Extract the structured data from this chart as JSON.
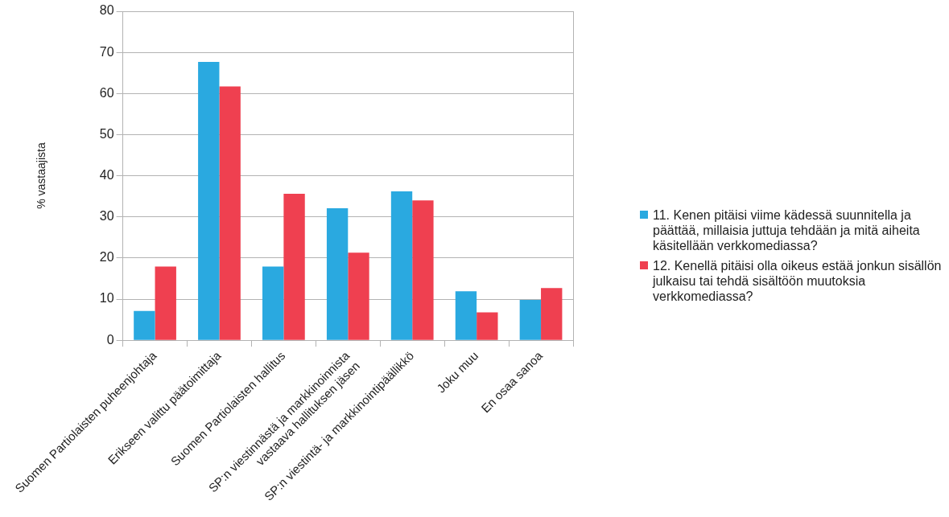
{
  "chart_data": {
    "type": "bar",
    "ylabel": "% vastaajista",
    "categories": [
      "Suomen Partiolaisten puheenjohtaja",
      "Erikseen valittu päätoimittaja",
      "Suomen Partiolaisten hallitus",
      "SP:n viestinnästä ja markkinoinnista\nvastaava hallituksen jäsen",
      "SP:n viestintä- ja markkinointipäällikkö",
      "Joku muu",
      "En osaa sanoa"
    ],
    "series": [
      {
        "name": "11. Kenen pitäisi viime kädessä suunnitella ja päättää, millaisia juttuja tehdään ja mitä aiheita käsitellään verkkomediassa?",
        "color": "#2aa9e0",
        "values": [
          7.1,
          67.7,
          17.9,
          32.1,
          36.2,
          11.9,
          9.8
        ]
      },
      {
        "name": "12. Kenellä pitäisi olla oikeus estää jonkun sisällön julkaisu tai tehdä sisältöön muutoksia verkkomediassa?",
        "color": "#ef4050",
        "values": [
          17.9,
          61.7,
          35.6,
          21.3,
          34.0,
          6.8,
          12.7
        ]
      }
    ],
    "ylim": [
      0,
      80
    ],
    "yticks": [
      0,
      10,
      20,
      30,
      40,
      50,
      60,
      70,
      80
    ],
    "grid": "y",
    "legend": "right"
  }
}
